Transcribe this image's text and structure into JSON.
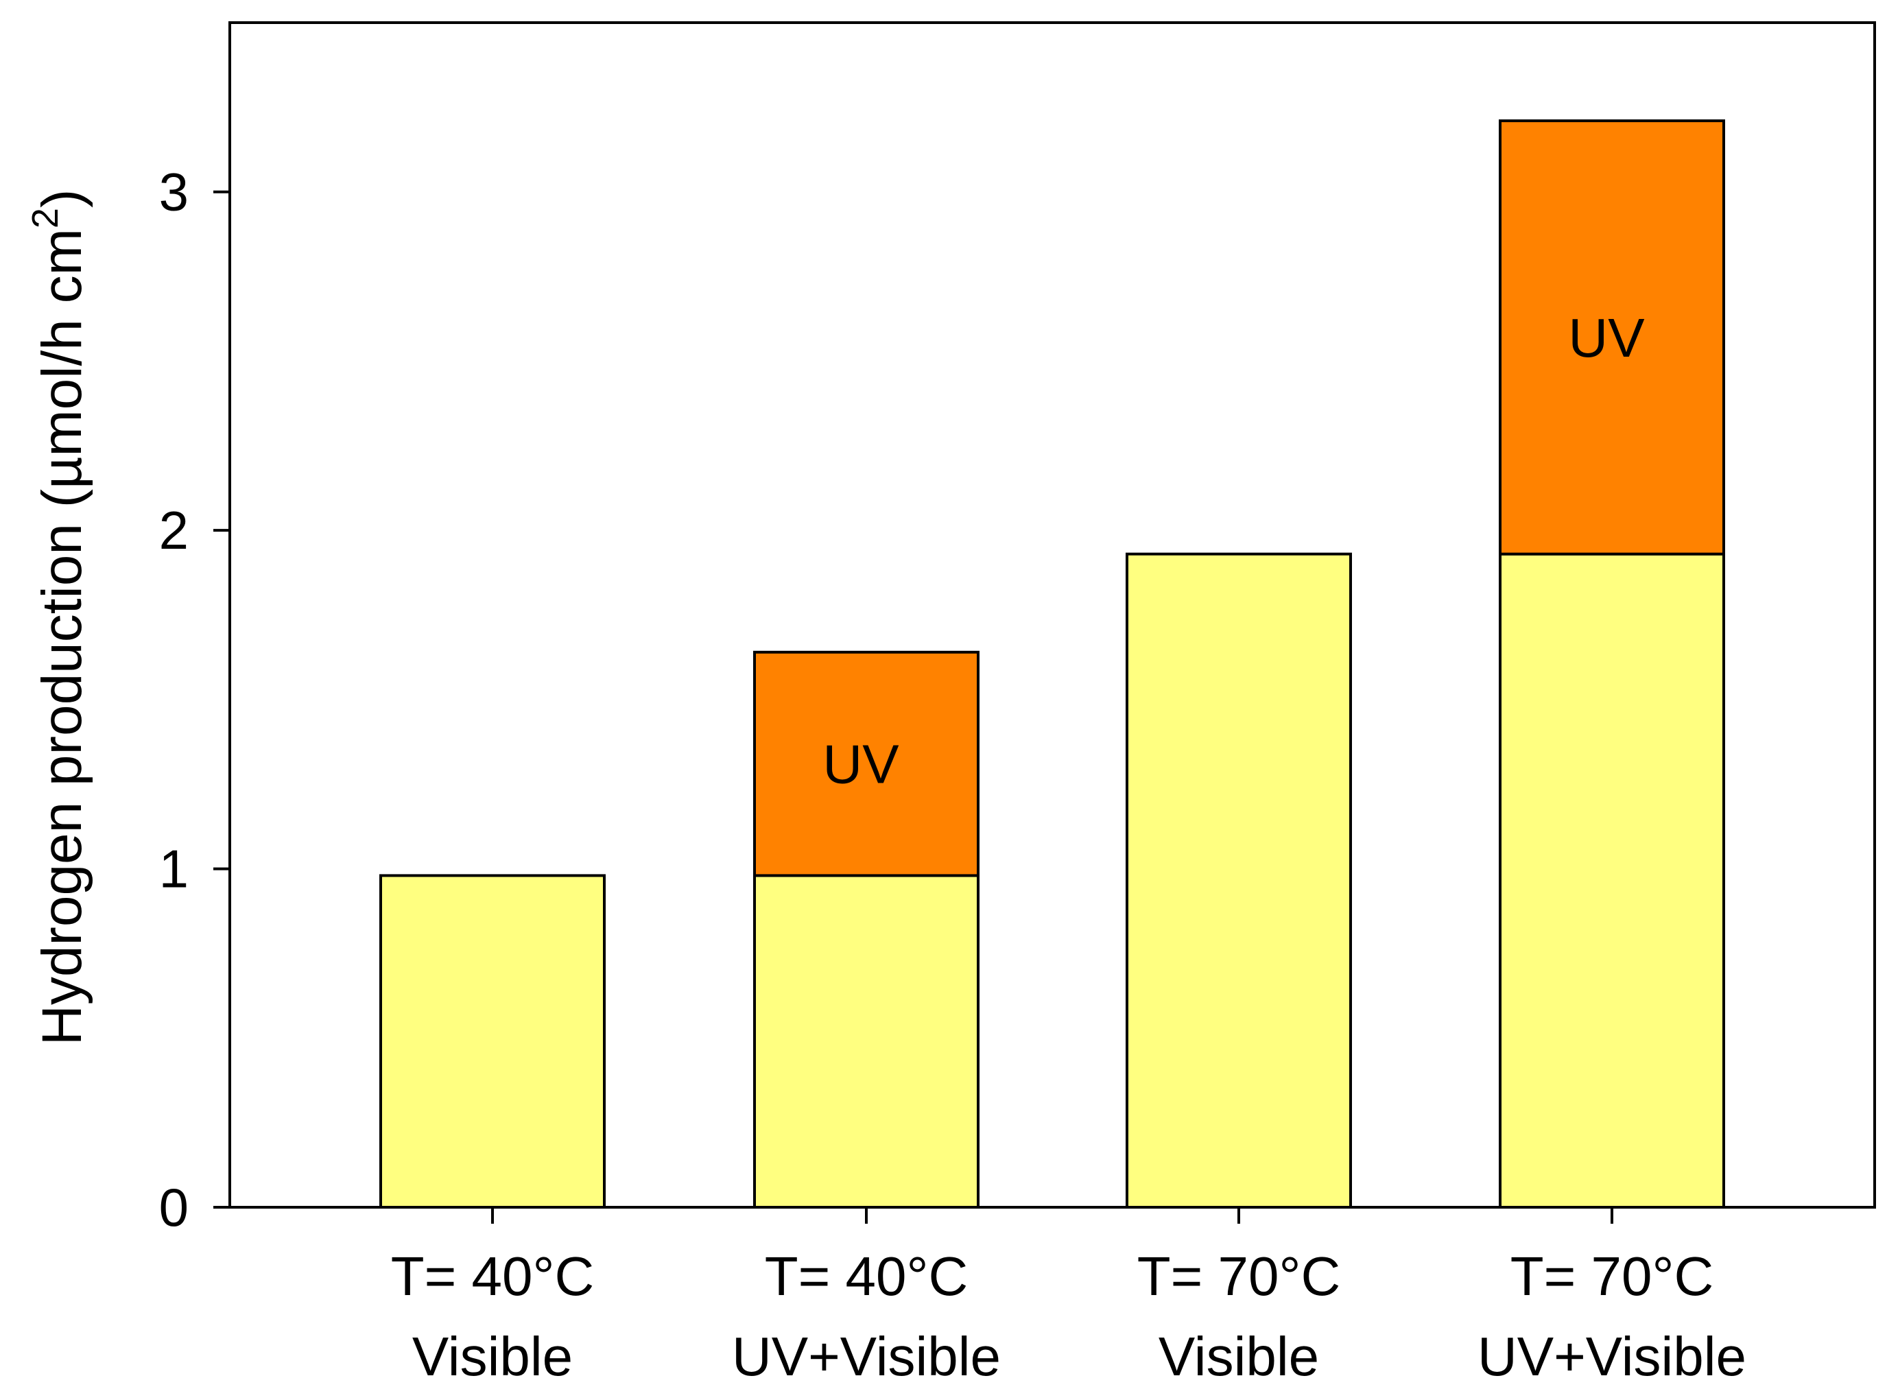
{
  "chart_data": {
    "type": "bar",
    "stacked": true,
    "title": "",
    "xlabel": "",
    "ylabel": "Hydrogen production (µmol/h cm",
    "ylabel_superscript": "2",
    "ylabel_close": ")",
    "ylim": [
      0,
      3.5
    ],
    "yticks": [
      0,
      1,
      2,
      3
    ],
    "ytick_labels": [
      "0",
      "1",
      "2",
      "3"
    ],
    "categories": [
      {
        "line1": "T= 40°C",
        "line2": "Visible"
      },
      {
        "line1": "T= 40°C",
        "line2": "UV+Visible"
      },
      {
        "line1": "T= 70°C",
        "line2": "Visible"
      },
      {
        "line1": "T= 70°C",
        "line2": "UV+Visible"
      }
    ],
    "series": [
      {
        "name": "Visible",
        "color": "#ffff80",
        "values": [
          0.98,
          0.98,
          1.93,
          1.93
        ],
        "label": ""
      },
      {
        "name": "UV",
        "color": "#ff8200",
        "values": [
          0,
          0.66,
          0,
          1.28
        ],
        "label": "UV"
      }
    ],
    "grid": false,
    "legend": "none"
  }
}
